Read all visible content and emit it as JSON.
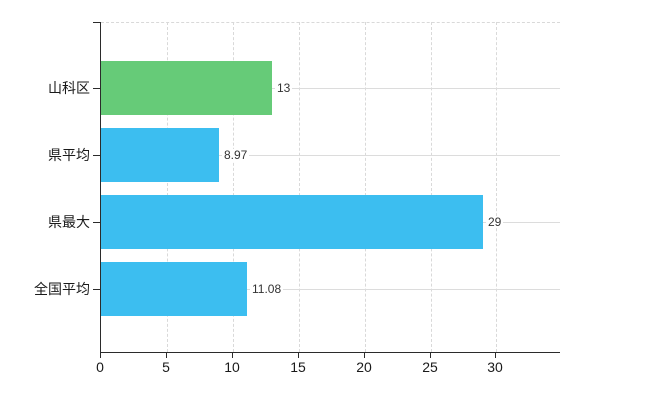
{
  "chart_data": {
    "type": "bar",
    "orientation": "horizontal",
    "title": "",
    "xlabel": "",
    "ylabel": "",
    "categories": [
      "山科区",
      "県平均",
      "県最大",
      "全国平均"
    ],
    "values": [
      13,
      8.97,
      29,
      11.08
    ],
    "value_labels": [
      "13",
      "8.97",
      "29",
      "11.08"
    ],
    "bar_colors": [
      "#66cb78",
      "#3cbef0",
      "#3cbef0",
      "#3cbef0"
    ],
    "x_ticks": [
      "0",
      "5",
      "10",
      "15",
      "20",
      "25",
      "30"
    ],
    "x_tick_values": [
      0,
      5,
      10,
      15,
      20,
      25,
      30
    ],
    "xlim": [
      0,
      34.9
    ],
    "grid": true,
    "legend_position": "none"
  },
  "colors": {
    "highlight_bar": "#66cb78",
    "default_bar": "#3cbef0",
    "axis": "#2b2b2b",
    "gridline_dashed": "#d9d9d9",
    "gridline_solid": "#dcdcdc",
    "text": "#1a1a1a",
    "value_text": "#333333",
    "background": "#ffffff"
  }
}
